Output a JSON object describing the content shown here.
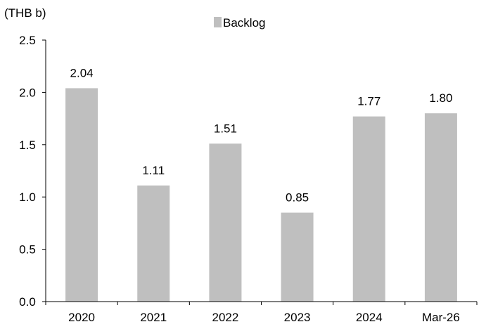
{
  "chart_data": {
    "type": "bar",
    "title": "",
    "unit_label": "(THB b)",
    "xlabel": "",
    "ylabel": "",
    "categories": [
      "2020",
      "2021",
      "2022",
      "2023",
      "2024",
      "Mar-26"
    ],
    "series": [
      {
        "name": "Backlog",
        "values": [
          2.04,
          1.11,
          1.51,
          0.85,
          1.77,
          1.8
        ],
        "color": "#bfbfbf"
      }
    ],
    "data_labels": [
      "2.04",
      "1.11",
      "1.51",
      "0.85",
      "1.77",
      "1.80"
    ],
    "ylim": [
      0,
      2.5
    ],
    "yticks": [
      0,
      0.5,
      1.0,
      1.5,
      2.0,
      2.5
    ],
    "ytick_labels": [
      "0.0",
      "0.5",
      "1.0",
      "1.5",
      "2.0",
      "2.5"
    ],
    "grid": false,
    "legend_position": "top-center"
  }
}
